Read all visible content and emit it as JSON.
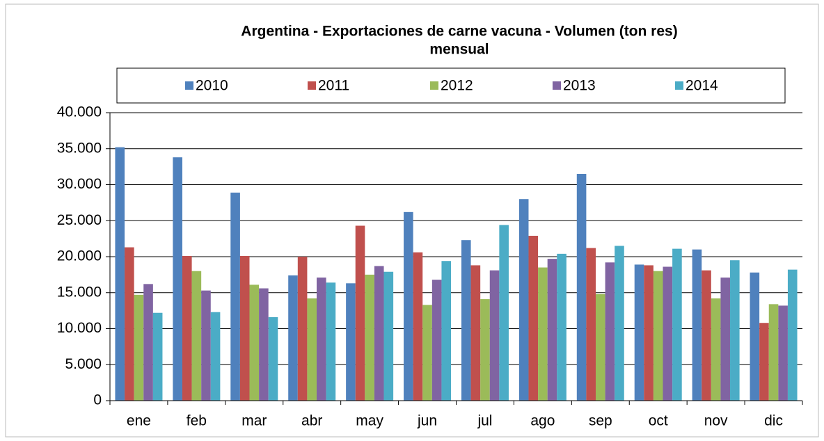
{
  "chart_data": {
    "type": "bar",
    "title": [
      "Argentina - Exportaciones de carne vacuna - Volumen (ton res)",
      "mensual"
    ],
    "categories": [
      "ene",
      "feb",
      "mar",
      "abr",
      "may",
      "jun",
      "jul",
      "ago",
      "sep",
      "oct",
      "nov",
      "dic"
    ],
    "series": [
      {
        "name": "2010",
        "color": "#4f81bd",
        "values": [
          35200,
          33800,
          28900,
          17400,
          16300,
          26200,
          22300,
          28000,
          31500,
          18900,
          21000,
          17800
        ]
      },
      {
        "name": "2011",
        "color": "#c0504d",
        "values": [
          21300,
          20100,
          20100,
          20000,
          24300,
          20600,
          18800,
          22900,
          21200,
          18800,
          18100,
          10800
        ]
      },
      {
        "name": "2012",
        "color": "#9bbb59",
        "values": [
          14700,
          18000,
          16100,
          14200,
          17500,
          13300,
          14100,
          18500,
          14800,
          18000,
          14200,
          13400
        ]
      },
      {
        "name": "2013",
        "color": "#8064a2",
        "values": [
          16200,
          15300,
          15600,
          17100,
          18700,
          16800,
          18100,
          19700,
          19200,
          18600,
          17100,
          13200
        ]
      },
      {
        "name": "2014",
        "color": "#4bacc6",
        "values": [
          12200,
          12300,
          11600,
          16400,
          17900,
          19400,
          24400,
          20400,
          21500,
          21100,
          19500,
          18200
        ]
      }
    ],
    "ylim": [
      0,
      40000
    ],
    "yticks": [
      0,
      {
        "value": 5000,
        "label": "5.000"
      },
      {
        "value": 10000,
        "label": "10.000"
      },
      {
        "value": 15000,
        "label": "15.000"
      },
      {
        "value": 20000,
        "label": "20.000"
      },
      {
        "value": 25000,
        "label": "25.000"
      },
      {
        "value": 30000,
        "label": "30.000"
      },
      {
        "value": 35000,
        "label": "35.000"
      },
      {
        "value": 40000,
        "label": "40.000"
      }
    ],
    "grid": true,
    "legend": "top"
  }
}
